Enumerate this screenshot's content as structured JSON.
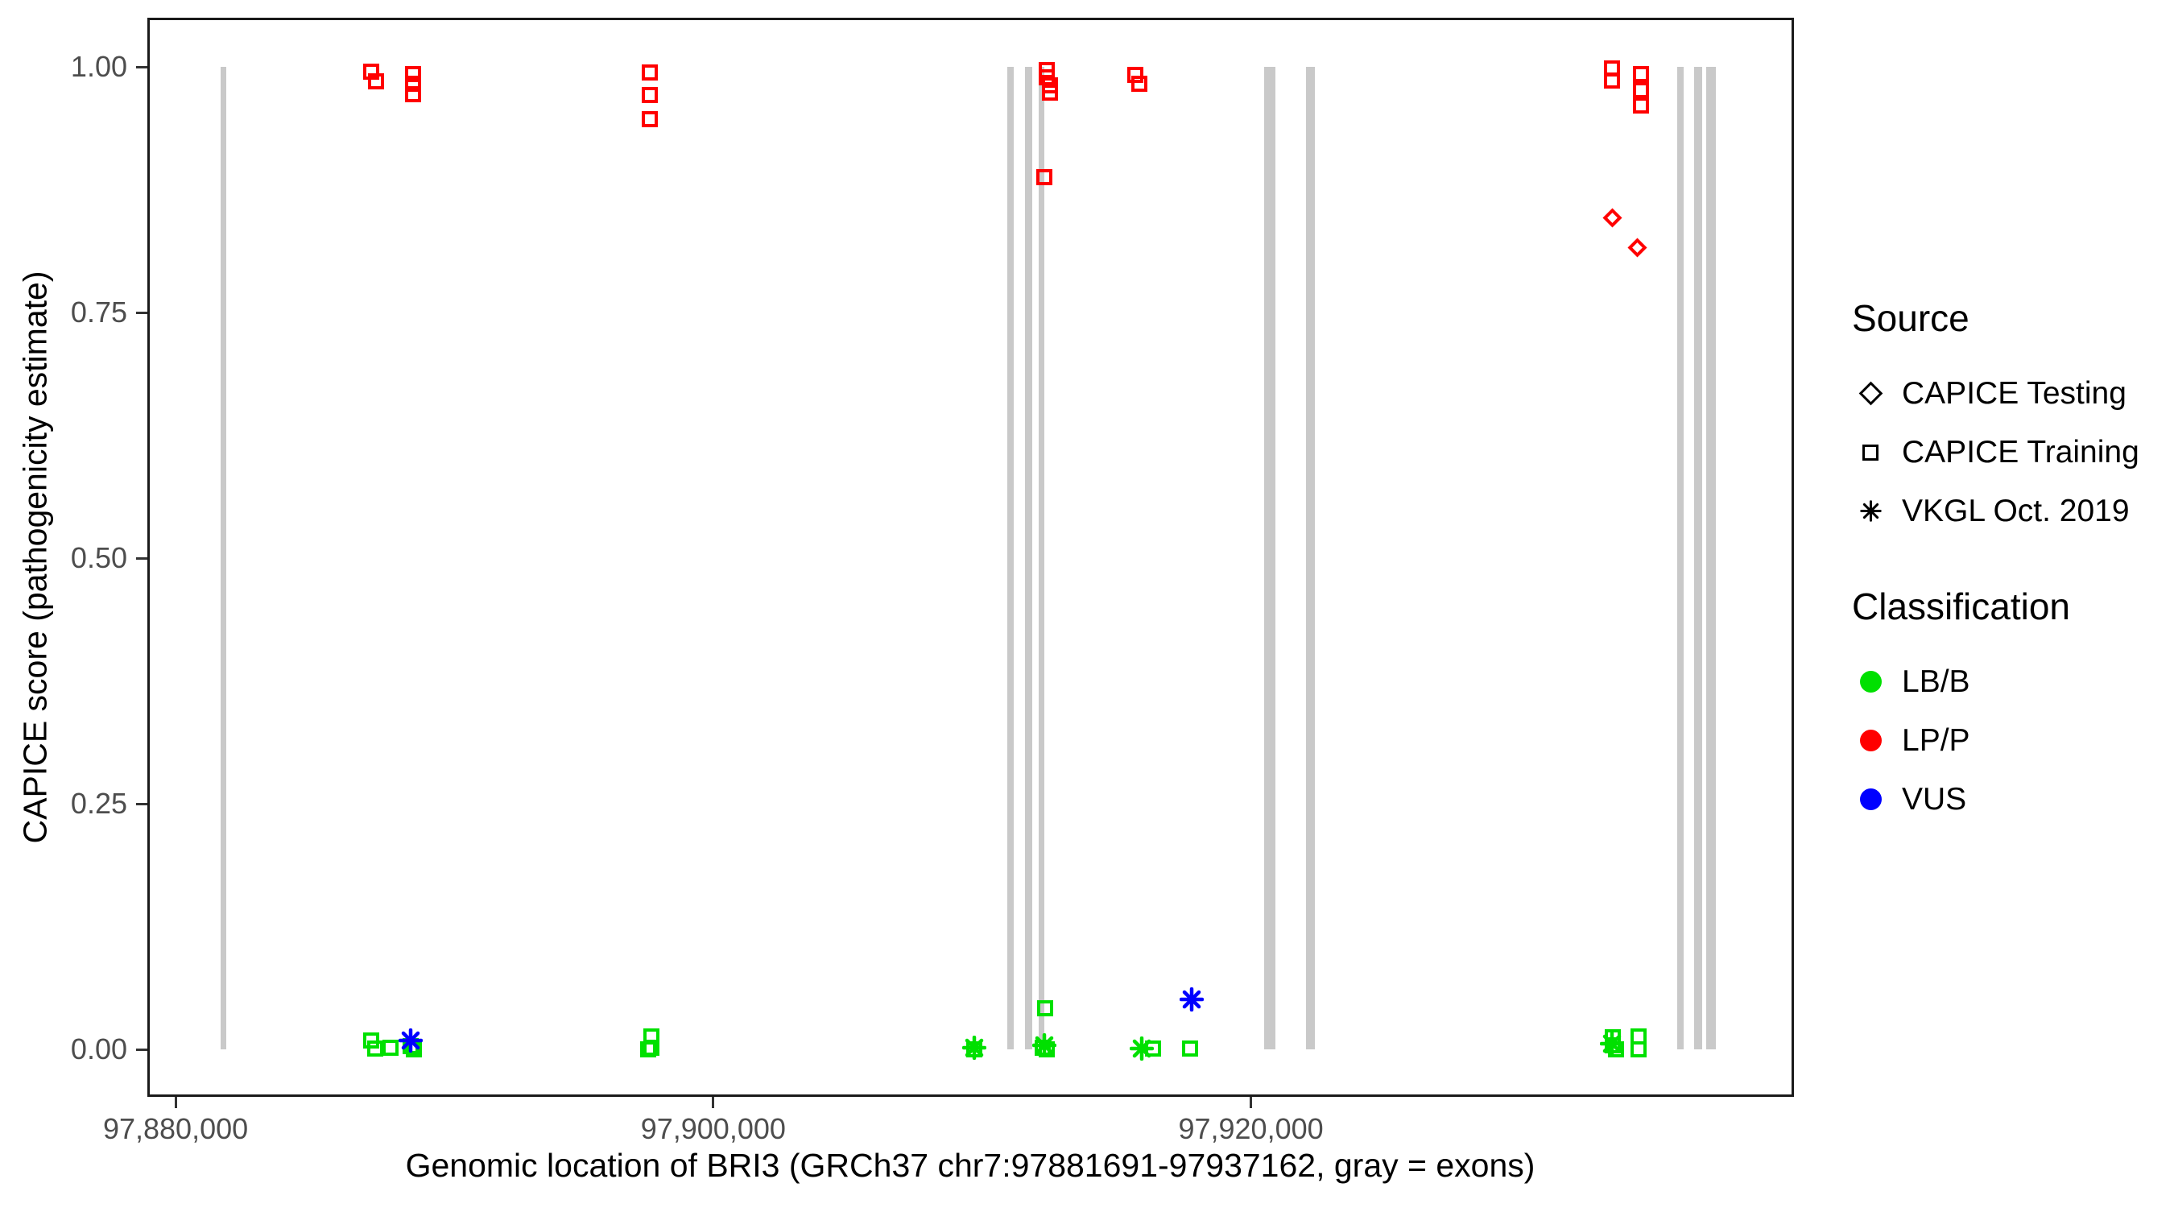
{
  "chart_data": {
    "type": "scatter",
    "xlabel": "Genomic location of BRI3 (GRCh37 chr7:97881691-97937162, gray = exons)",
    "ylabel": "CAPICE score (pathogenicity estimate)",
    "x_domain": [
      97878950,
      97940200
    ],
    "y_domain": [
      -0.048,
      1.05
    ],
    "grid": false,
    "x_ticks": [
      {
        "value": 97880000,
        "label": "97,880,000"
      },
      {
        "value": 97900000,
        "label": "97,900,000"
      },
      {
        "value": 97920000,
        "label": "97,920,000"
      }
    ],
    "y_ticks": [
      {
        "value": 0.0,
        "label": "0.00"
      },
      {
        "value": 0.25,
        "label": "0.25"
      },
      {
        "value": 0.5,
        "label": "0.50"
      },
      {
        "value": 0.75,
        "label": "0.75"
      },
      {
        "value": 1.0,
        "label": "1.00"
      }
    ],
    "exons_note": "gray vertical bars = exons, drawn from y=0 to y=1",
    "exons": [
      [
        97881661,
        97881885
      ],
      [
        97910937,
        97911177
      ],
      [
        97911596,
        97911866
      ],
      [
        97912105,
        97912315
      ],
      [
        97920492,
        97920911
      ],
      [
        97922049,
        97922378
      ],
      [
        97935861,
        97936100
      ],
      [
        97936490,
        97936789
      ],
      [
        97936939,
        97937298
      ]
    ],
    "points": [
      {
        "x": 97887280,
        "y": 0.995,
        "source": "training",
        "classification": "LP/P"
      },
      {
        "x": 97887460,
        "y": 0.985,
        "source": "training",
        "classification": "LP/P"
      },
      {
        "x": 97888840,
        "y": 0.993,
        "source": "training",
        "classification": "LP/P"
      },
      {
        "x": 97888840,
        "y": 0.983,
        "source": "training",
        "classification": "LP/P"
      },
      {
        "x": 97888840,
        "y": 0.972,
        "source": "training",
        "classification": "LP/P"
      },
      {
        "x": 97897640,
        "y": 0.994,
        "source": "training",
        "classification": "LP/P"
      },
      {
        "x": 97897640,
        "y": 0.971,
        "source": "training",
        "classification": "LP/P"
      },
      {
        "x": 97897640,
        "y": 0.947,
        "source": "training",
        "classification": "LP/P"
      },
      {
        "x": 97912400,
        "y": 0.997,
        "source": "training",
        "classification": "LP/P"
      },
      {
        "x": 97912400,
        "y": 0.989,
        "source": "training",
        "classification": "LP/P"
      },
      {
        "x": 97912520,
        "y": 0.981,
        "source": "training",
        "classification": "LP/P"
      },
      {
        "x": 97912520,
        "y": 0.974,
        "source": "training",
        "classification": "LP/P"
      },
      {
        "x": 97912310,
        "y": 0.888,
        "source": "training",
        "classification": "LP/P"
      },
      {
        "x": 97915690,
        "y": 0.992,
        "source": "training",
        "classification": "LP/P"
      },
      {
        "x": 97915840,
        "y": 0.983,
        "source": "training",
        "classification": "LP/P"
      },
      {
        "x": 97933430,
        "y": 0.998,
        "source": "training",
        "classification": "LP/P"
      },
      {
        "x": 97933430,
        "y": 0.986,
        "source": "training",
        "classification": "LP/P"
      },
      {
        "x": 97934500,
        "y": 0.993,
        "source": "training",
        "classification": "LP/P"
      },
      {
        "x": 97934500,
        "y": 0.976,
        "source": "training",
        "classification": "LP/P"
      },
      {
        "x": 97934500,
        "y": 0.961,
        "source": "training",
        "classification": "LP/P"
      },
      {
        "x": 97933460,
        "y": 0.846,
        "source": "testing",
        "classification": "LP/P"
      },
      {
        "x": 97934360,
        "y": 0.816,
        "source": "testing",
        "classification": "LP/P"
      },
      {
        "x": 97887280,
        "y": 0.009,
        "source": "training",
        "classification": "LB/B"
      },
      {
        "x": 97887430,
        "y": 0.001,
        "source": "training",
        "classification": "LB/B"
      },
      {
        "x": 97888000,
        "y": 0.002,
        "source": "training",
        "classification": "LB/B"
      },
      {
        "x": 97888750,
        "y": 0.003,
        "source": "training",
        "classification": "LB/B"
      },
      {
        "x": 97888870,
        "y": 0.0,
        "source": "training",
        "classification": "LB/B"
      },
      {
        "x": 97897700,
        "y": 0.013,
        "source": "training",
        "classification": "LB/B"
      },
      {
        "x": 97897700,
        "y": 0.002,
        "source": "training",
        "classification": "LB/B"
      },
      {
        "x": 97897580,
        "y": 0.0,
        "source": "training",
        "classification": "LB/B"
      },
      {
        "x": 97909710,
        "y": 0.0,
        "source": "training",
        "classification": "LB/B"
      },
      {
        "x": 97912340,
        "y": 0.042,
        "source": "training",
        "classification": "LB/B"
      },
      {
        "x": 97912250,
        "y": 0.002,
        "source": "training",
        "classification": "LB/B"
      },
      {
        "x": 97912400,
        "y": 0.0,
        "source": "training",
        "classification": "LB/B"
      },
      {
        "x": 97916350,
        "y": 0.001,
        "source": "training",
        "classification": "LB/B"
      },
      {
        "x": 97917730,
        "y": 0.001,
        "source": "training",
        "classification": "LB/B"
      },
      {
        "x": 97933460,
        "y": 0.012,
        "source": "training",
        "classification": "LB/B"
      },
      {
        "x": 97933460,
        "y": 0.004,
        "source": "training",
        "classification": "LB/B"
      },
      {
        "x": 97933580,
        "y": 0.0,
        "source": "training",
        "classification": "LB/B"
      },
      {
        "x": 97934420,
        "y": 0.013,
        "source": "training",
        "classification": "LB/B"
      },
      {
        "x": 97934420,
        "y": 0.0,
        "source": "training",
        "classification": "LB/B"
      },
      {
        "x": 97909710,
        "y": 0.002,
        "source": "vkgl",
        "classification": "LB/B"
      },
      {
        "x": 97912310,
        "y": 0.004,
        "source": "vkgl",
        "classification": "LB/B"
      },
      {
        "x": 97915930,
        "y": 0.001,
        "source": "vkgl",
        "classification": "LB/B"
      },
      {
        "x": 97933430,
        "y": 0.006,
        "source": "vkgl",
        "classification": "LB/B"
      },
      {
        "x": 97888750,
        "y": 0.009,
        "source": "vkgl",
        "classification": "VUS"
      },
      {
        "x": 97917790,
        "y": 0.051,
        "source": "vkgl",
        "classification": "VUS"
      }
    ]
  },
  "colors": {
    "LB/B": "#00e000",
    "LP/P": "#ff0000",
    "VUS": "#0000ff",
    "exon": "#c9c9c9",
    "axis_text": "#4d4d4d",
    "legend_glyph": "#000000"
  },
  "legend": {
    "source": {
      "title": "Source",
      "items": [
        {
          "label": "CAPICE Testing",
          "marker": "diamond"
        },
        {
          "label": "CAPICE Training",
          "marker": "square"
        },
        {
          "label": "VKGL Oct. 2019",
          "marker": "asterisk"
        }
      ]
    },
    "classification": {
      "title": "Classification",
      "items": [
        {
          "label": "LB/B",
          "color": "#00e000"
        },
        {
          "label": "LP/P",
          "color": "#ff0000"
        },
        {
          "label": "VUS",
          "color": "#0000ff"
        }
      ]
    }
  }
}
